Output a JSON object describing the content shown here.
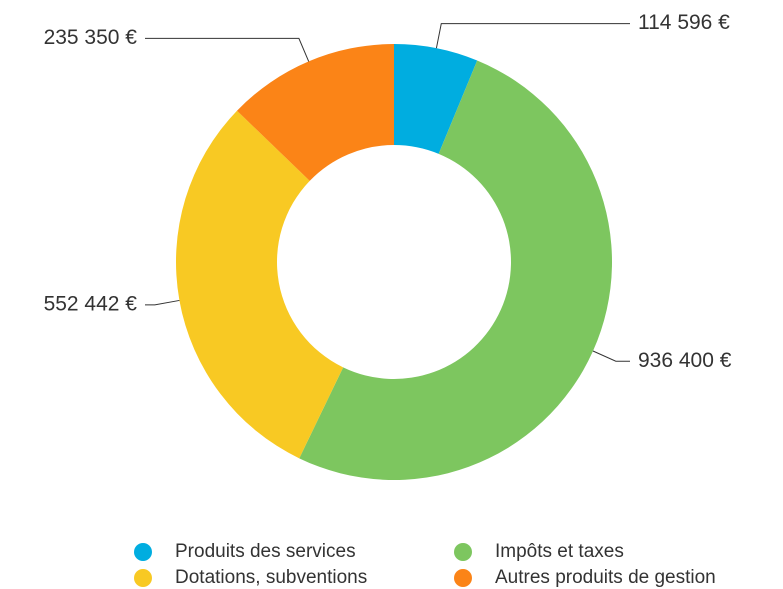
{
  "chart_data": {
    "type": "donut",
    "categories": [
      "Produits des services",
      "Impôts et taxes",
      "Dotations, subventions",
      "Autres produits de gestion"
    ],
    "values": [
      114596,
      936400,
      552442,
      235350
    ],
    "value_labels": [
      "114 596 €",
      "936 400 €",
      "552 442 €",
      "235 350 €"
    ],
    "colors": [
      "#00ade0",
      "#7dc65f",
      "#f8c923",
      "#fb8417"
    ]
  }
}
